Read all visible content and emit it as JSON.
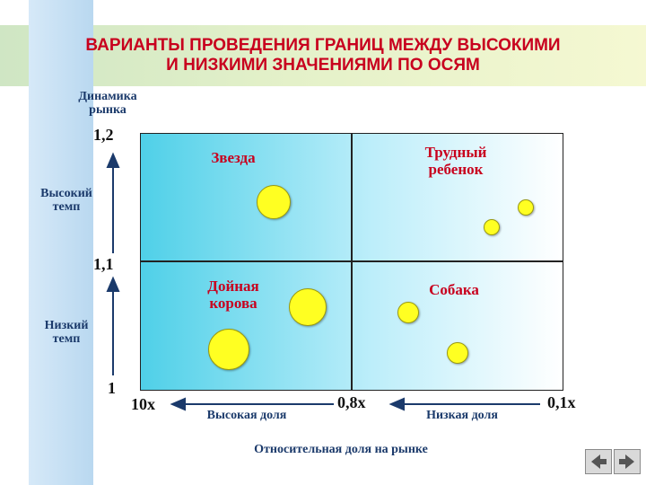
{
  "title": {
    "line1": "ВАРИАНТЫ ПРОВЕДЕНИЯ ГРАНИЦ МЕЖДУ ВЫСОКИМИ",
    "line2": "И НИЗКИМИ ЗНАЧЕНИЯМИ ПО ОСЯМ"
  },
  "y_axis": {
    "title_line1": "Динамика",
    "title_line2": "рынка",
    "tick_top": "1,2",
    "tick_mid": "1,1",
    "tick_bottom": "1",
    "high_line1": "Высокий",
    "high_line2": "темп",
    "low_line1": "Низкий",
    "low_line2": "темп"
  },
  "x_axis": {
    "tick_left": "10x",
    "tick_mid": "0,8x",
    "tick_right": "0,1x",
    "high_label": "Высокая доля",
    "low_label": "Низкая доля",
    "title": "Относительная доля на рынке"
  },
  "quadrants": {
    "star": "Звезда",
    "problem_line1": "Трудный",
    "problem_line2": "ребенок",
    "cow_line1": "Дойная",
    "cow_line2": "корова",
    "dog": "Собака"
  },
  "colors": {
    "title": "#c8001e",
    "bubble": "#ffff22",
    "axis_text": "#1b3a6b"
  },
  "icons": [
    "back-arrow-icon",
    "forward-arrow-icon"
  ]
}
